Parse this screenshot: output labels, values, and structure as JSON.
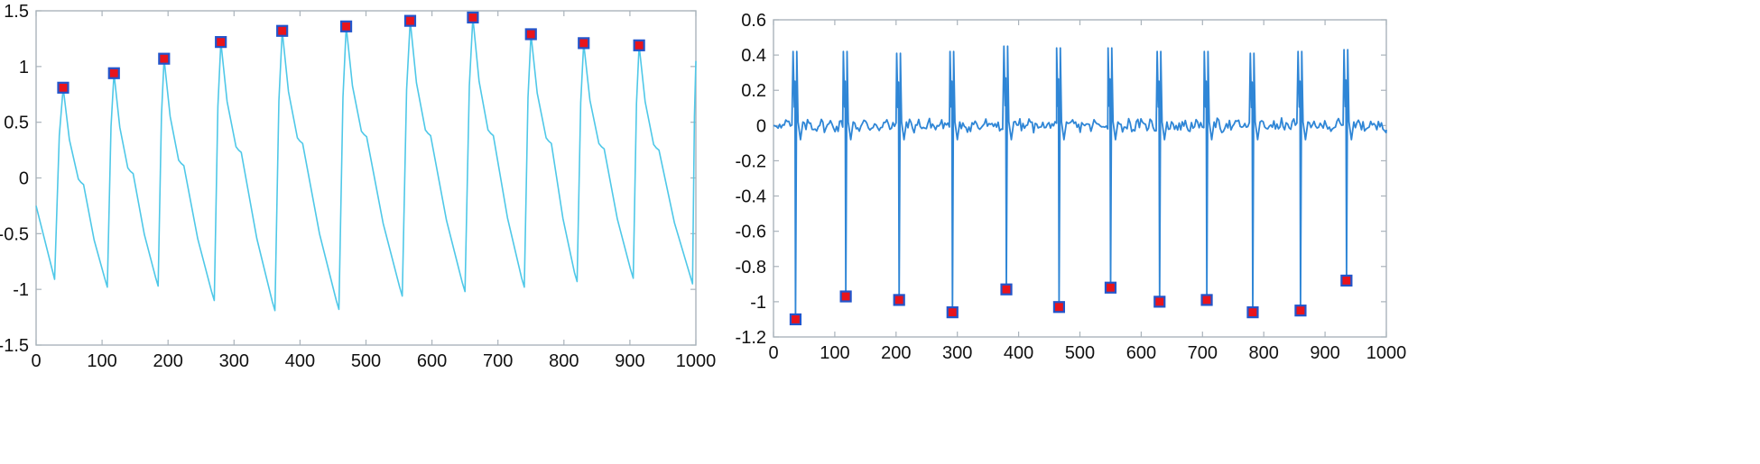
{
  "chart_data": [
    {
      "type": "line",
      "title": "",
      "xlabel": "",
      "ylabel": "",
      "xlim": [
        0,
        1000
      ],
      "ylim": [
        -1.5,
        1.5
      ],
      "grid": false,
      "legend": "none",
      "x_ticks": [
        "0",
        "100",
        "200",
        "300",
        "400",
        "500",
        "600",
        "700",
        "800",
        "900",
        "1000"
      ],
      "y_ticks": [
        "1.5",
        "1",
        "0.5",
        "0",
        "-0.5",
        "-1",
        "-1.5"
      ],
      "series": [
        {
          "kind": "pulse waveform",
          "color": "#4fc8e8",
          "start": [
            0,
            -0.25
          ],
          "end": [
            1000,
            1.05
          ],
          "beats": [
            {
              "min_x": 28,
              "min_y": -0.91,
              "peak_x": 41,
              "peak_y": 0.81,
              "notch_x": 68,
              "notch_y": -0.04
            },
            {
              "min_x": 108,
              "min_y": -0.98,
              "peak_x": 118,
              "peak_y": 0.94,
              "notch_x": 143,
              "notch_y": 0.06
            },
            {
              "min_x": 185,
              "min_y": -0.97,
              "peak_x": 194,
              "peak_y": 1.07,
              "notch_x": 220,
              "notch_y": 0.13
            },
            {
              "min_x": 270,
              "min_y": -1.1,
              "peak_x": 280,
              "peak_y": 1.22,
              "notch_x": 307,
              "notch_y": 0.25
            },
            {
              "min_x": 362,
              "min_y": -1.19,
              "peak_x": 373,
              "peak_y": 1.32,
              "notch_x": 400,
              "notch_y": 0.33
            },
            {
              "min_x": 459,
              "min_y": -1.18,
              "peak_x": 470,
              "peak_y": 1.36,
              "notch_x": 497,
              "notch_y": 0.39
            },
            {
              "min_x": 555,
              "min_y": -1.06,
              "peak_x": 567,
              "peak_y": 1.41,
              "notch_x": 594,
              "notch_y": 0.4
            },
            {
              "min_x": 650,
              "min_y": -1.02,
              "peak_x": 662,
              "peak_y": 1.44,
              "notch_x": 689,
              "notch_y": 0.4
            },
            {
              "min_x": 740,
              "min_y": -0.98,
              "peak_x": 750,
              "peak_y": 1.29,
              "notch_x": 777,
              "notch_y": 0.33
            },
            {
              "min_x": 820,
              "min_y": -0.93,
              "peak_x": 830,
              "peak_y": 1.21,
              "notch_x": 857,
              "notch_y": 0.28
            },
            {
              "min_x": 905,
              "min_y": -0.9,
              "peak_x": 914,
              "peak_y": 1.19,
              "notch_x": 940,
              "notch_y": 0.27
            },
            {
              "min_x": 995,
              "min_y": -0.95,
              "peak_x": 1000,
              "peak_y": 1.05,
              "notch_x": 1000,
              "notch_y": 1.05
            }
          ]
        }
      ],
      "markers": {
        "kind": "detected peaks",
        "fill": "#e8141c",
        "edge": "#2255cc",
        "points": [
          [
            41,
            0.81
          ],
          [
            118,
            0.94
          ],
          [
            194,
            1.07
          ],
          [
            280,
            1.22
          ],
          [
            373,
            1.32
          ],
          [
            470,
            1.36
          ],
          [
            567,
            1.41
          ],
          [
            662,
            1.44
          ],
          [
            750,
            1.29
          ],
          [
            830,
            1.21
          ],
          [
            914,
            1.19
          ]
        ]
      }
    },
    {
      "type": "line",
      "title": "",
      "xlabel": "",
      "ylabel": "",
      "xlim": [
        0,
        1000
      ],
      "ylim": [
        -1.2,
        0.6
      ],
      "grid": false,
      "legend": "none",
      "x_ticks": [
        "0",
        "100",
        "200",
        "300",
        "400",
        "500",
        "600",
        "700",
        "800",
        "900",
        "1000"
      ],
      "y_ticks": [
        "0.6",
        "0.4",
        "0.2",
        "0",
        "-0.2",
        "-0.4",
        "-0.6",
        "-0.8",
        "-1",
        "-1.2"
      ],
      "series": [
        {
          "kind": "ecg-like derivative signal",
          "color": "#2f86d6",
          "baseline": 0,
          "spikes": [
            {
              "x": 36,
              "up": 0.42,
              "down": -1.1
            },
            {
              "x": 118,
              "up": 0.42,
              "down": -0.97
            },
            {
              "x": 205,
              "up": 0.41,
              "down": -0.99
            },
            {
              "x": 292,
              "up": 0.42,
              "down": -1.06
            },
            {
              "x": 380,
              "up": 0.45,
              "down": -0.93
            },
            {
              "x": 466,
              "up": 0.44,
              "down": -1.03
            },
            {
              "x": 550,
              "up": 0.44,
              "down": -0.92
            },
            {
              "x": 630,
              "up": 0.42,
              "down": -1.0
            },
            {
              "x": 707,
              "up": 0.42,
              "down": -0.99
            },
            {
              "x": 782,
              "up": 0.41,
              "down": -1.06
            },
            {
              "x": 860,
              "up": 0.42,
              "down": -1.05
            },
            {
              "x": 935,
              "up": 0.43,
              "down": -0.88
            }
          ]
        }
      ],
      "markers": {
        "kind": "detected troughs",
        "fill": "#e8141c",
        "edge": "#2255cc",
        "points": [
          [
            36,
            -1.1
          ],
          [
            118,
            -0.97
          ],
          [
            205,
            -0.99
          ],
          [
            292,
            -1.06
          ],
          [
            380,
            -0.93
          ],
          [
            466,
            -1.03
          ],
          [
            550,
            -0.92
          ],
          [
            630,
            -1.0
          ],
          [
            707,
            -0.99
          ],
          [
            782,
            -1.06
          ],
          [
            860,
            -1.05
          ],
          [
            935,
            -0.88
          ]
        ]
      }
    }
  ]
}
